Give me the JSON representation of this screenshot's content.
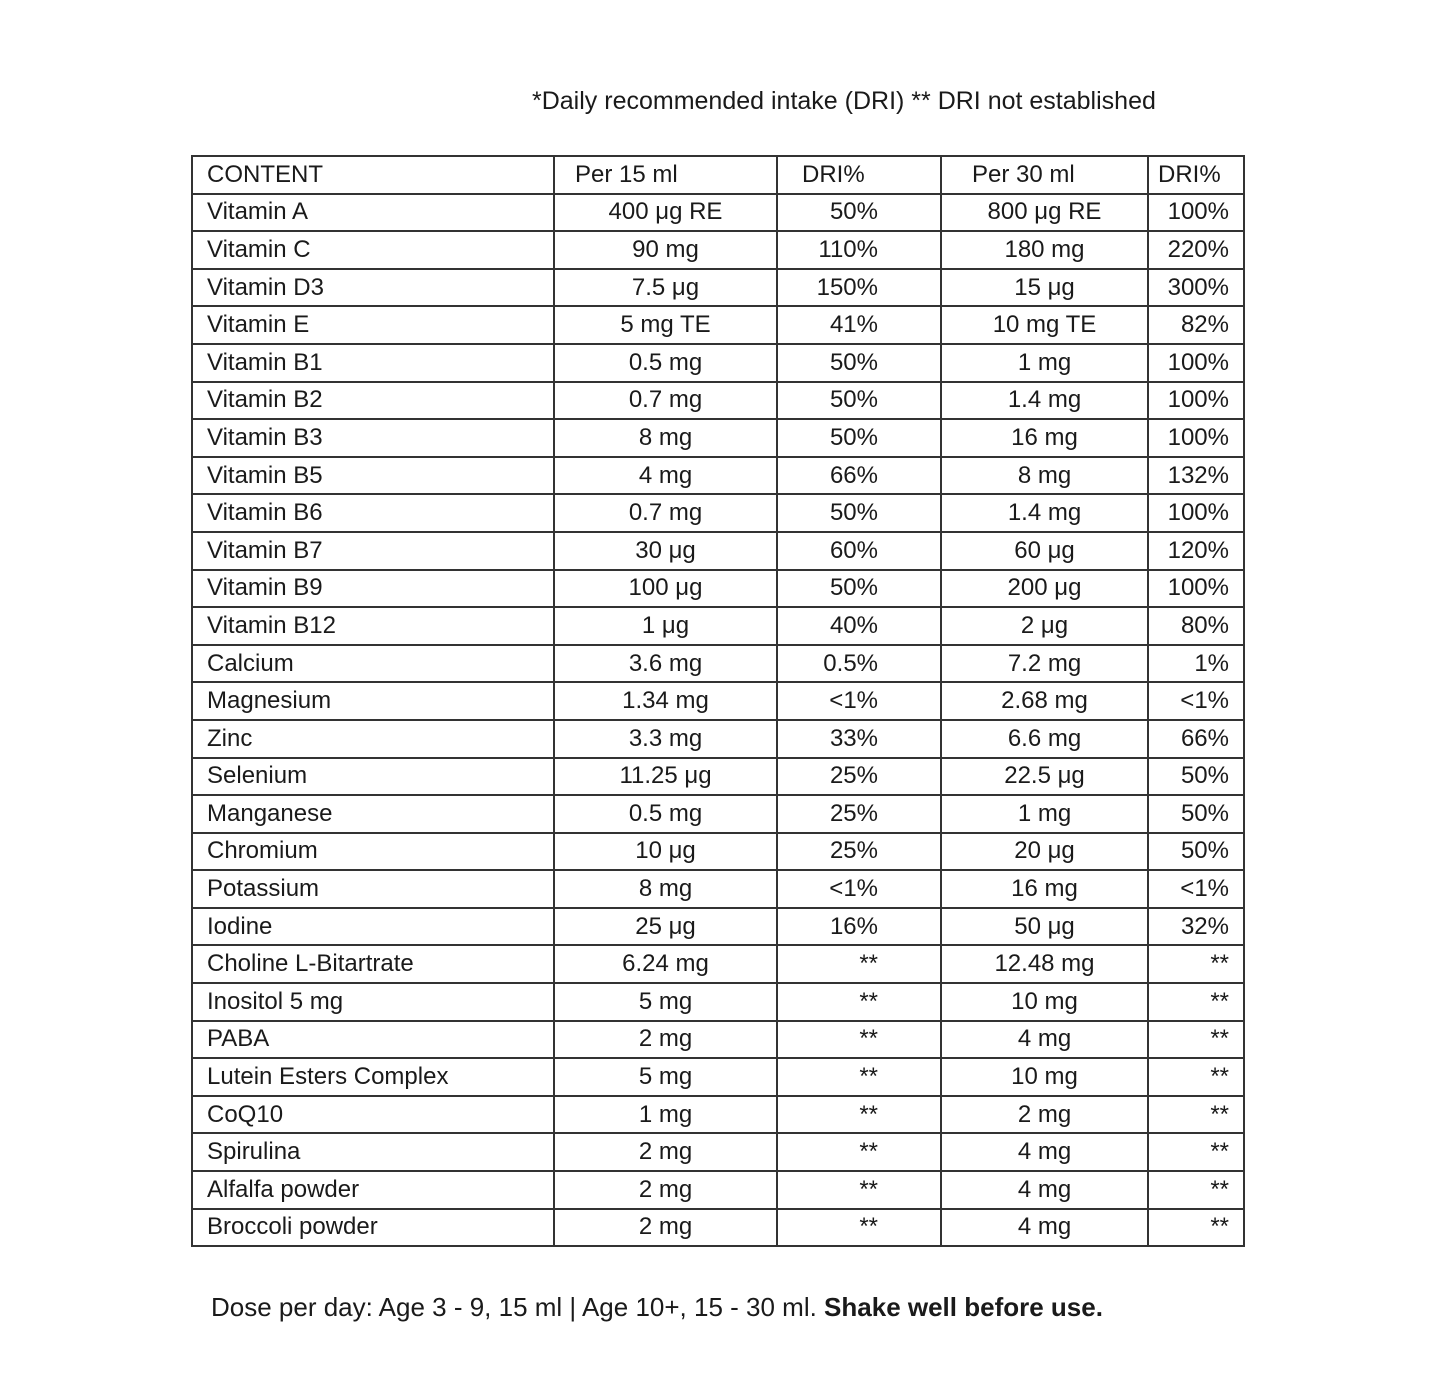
{
  "note": "*Daily recommended intake (DRI)  ** DRI not established",
  "table": {
    "headers": [
      "CONTENT",
      "Per 15 ml",
      "DRI%",
      "Per 30 ml",
      "DRI%"
    ],
    "rows": [
      [
        "Vitamin A",
        "400 μg RE",
        "50%",
        "800 μg RE",
        "100%"
      ],
      [
        "Vitamin C",
        "90 mg",
        "110%",
        "180 mg",
        "220%"
      ],
      [
        "Vitamin D3",
        "7.5 μg",
        "150%",
        "15 μg",
        "300%"
      ],
      [
        "Vitamin E",
        "5 mg TE",
        "41%",
        "10 mg TE",
        "82%"
      ],
      [
        "Vitamin B1",
        "0.5 mg",
        "50%",
        "1 mg",
        "100%"
      ],
      [
        "Vitamin B2",
        "0.7 mg",
        "50%",
        "1.4 mg",
        "100%"
      ],
      [
        "Vitamin B3",
        "8 mg",
        "50%",
        "16 mg",
        "100%"
      ],
      [
        "Vitamin B5",
        "4 mg",
        "66%",
        "8 mg",
        "132%"
      ],
      [
        "Vitamin B6",
        "0.7 mg",
        "50%",
        "1.4 mg",
        "100%"
      ],
      [
        "Vitamin B7",
        "30 μg",
        "60%",
        "60 μg",
        "120%"
      ],
      [
        "Vitamin B9",
        "100 μg",
        "50%",
        "200 μg",
        "100%"
      ],
      [
        "Vitamin B12",
        "1 μg",
        "40%",
        "2 μg",
        "80%"
      ],
      [
        "Calcium",
        "3.6 mg",
        "0.5%",
        "7.2 mg",
        "1%"
      ],
      [
        "Magnesium",
        "1.34 mg",
        "<1%",
        "2.68 mg",
        "<1%"
      ],
      [
        "Zinc",
        "3.3 mg",
        "33%",
        "6.6 mg",
        "66%"
      ],
      [
        "Selenium",
        "11.25 μg",
        "25%",
        "22.5 μg",
        "50%"
      ],
      [
        "Manganese",
        "0.5 mg",
        "25%",
        "1 mg",
        "50%"
      ],
      [
        "Chromium",
        "10 μg",
        "25%",
        "20 μg",
        "50%"
      ],
      [
        "Potassium",
        "8 mg",
        "<1%",
        "16 mg",
        "<1%"
      ],
      [
        "Iodine",
        "25 μg",
        "16%",
        "50 μg",
        "32%"
      ],
      [
        "Choline L-Bitartrate",
        "6.24 mg",
        "**",
        "12.48 mg",
        "**"
      ],
      [
        "Inositol 5 mg",
        "5 mg",
        "**",
        "10 mg",
        "**"
      ],
      [
        "PABA",
        "2 mg",
        "**",
        "4 mg",
        "**"
      ],
      [
        "Lutein Esters Complex",
        "5 mg",
        "**",
        "10 mg",
        "**"
      ],
      [
        "CoQ10",
        "1 mg",
        "**",
        "2 mg",
        "**"
      ],
      [
        "Spirulina",
        "2 mg",
        "**",
        "4 mg",
        "**"
      ],
      [
        "Alfalfa powder",
        "2 mg",
        "**",
        "4 mg",
        "**"
      ],
      [
        "Broccoli powder",
        "2 mg",
        "**",
        "4 mg",
        "**"
      ]
    ]
  },
  "dose": {
    "text": "Dose per day:  Age 3 - 9, 15 ml | Age 10+, 15 - 30 ml. ",
    "emphasis": "Shake well before use."
  }
}
